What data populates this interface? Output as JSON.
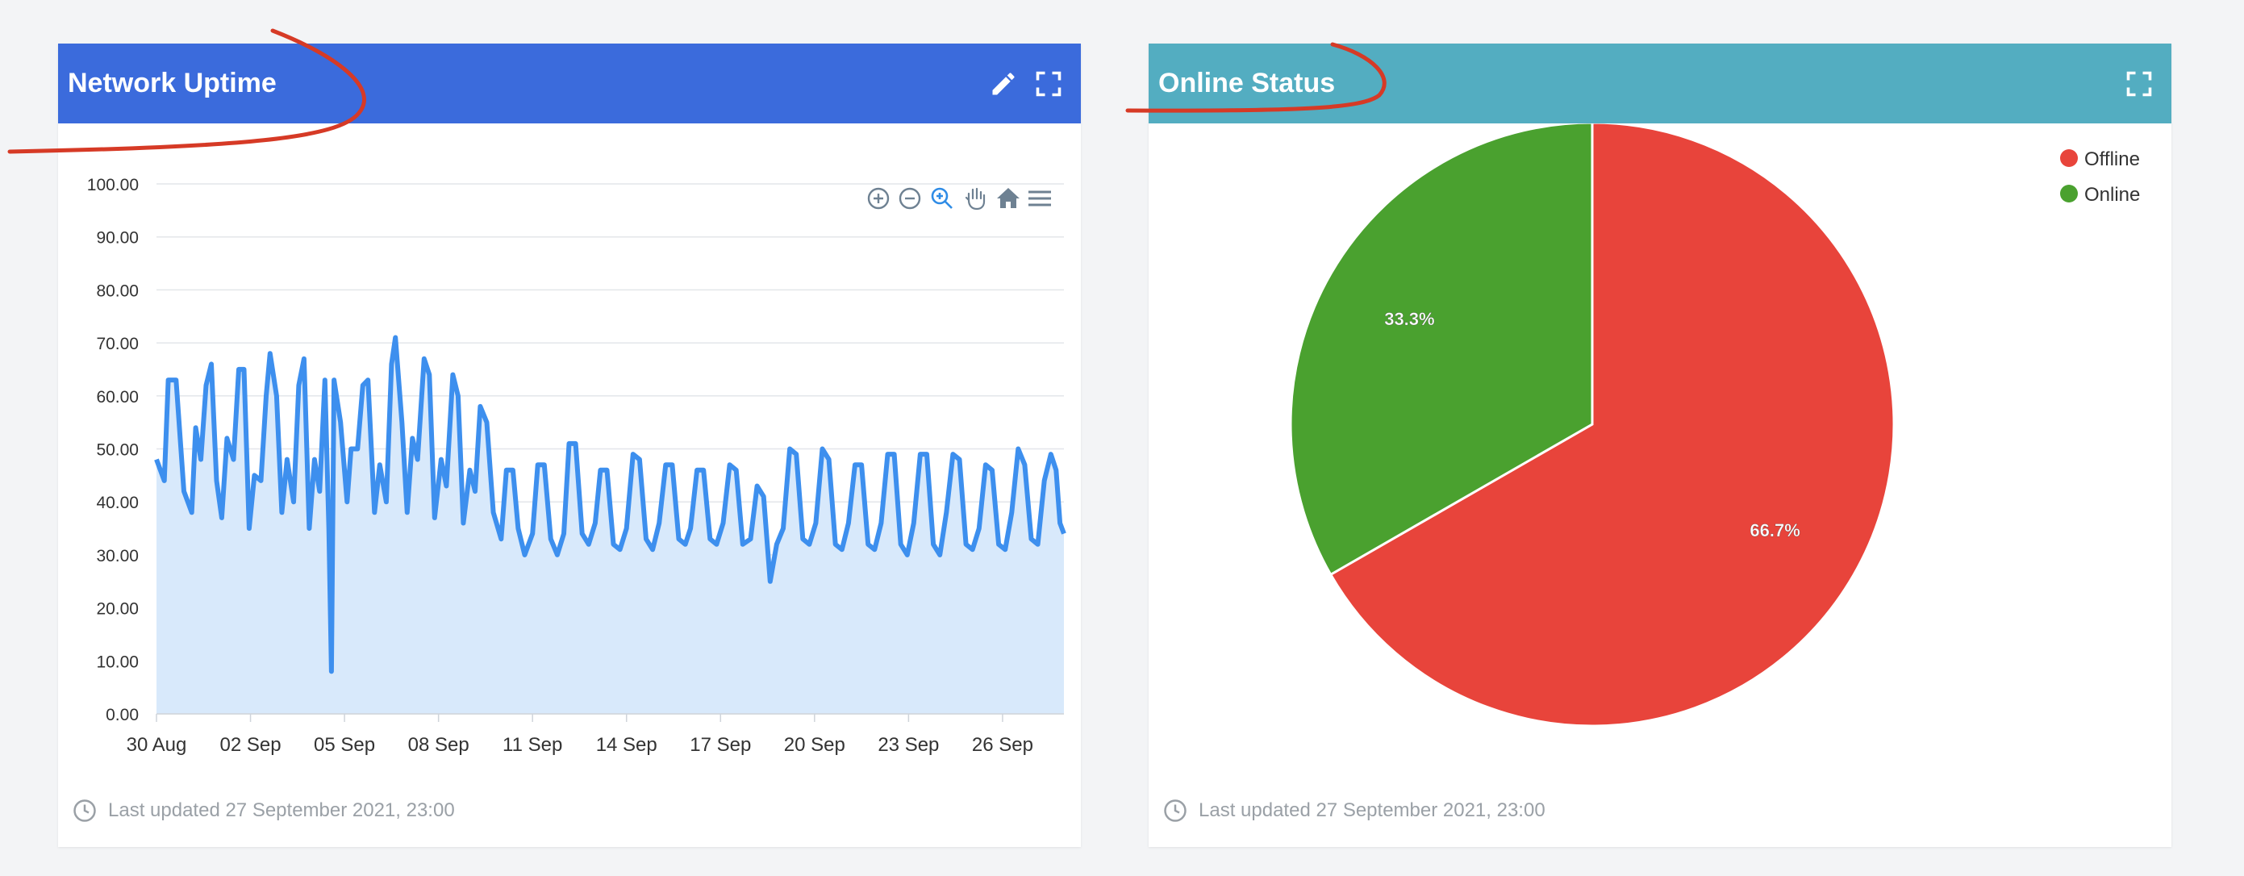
{
  "panels": {
    "uptime": {
      "title": "Network Uptime",
      "last_updated": "Last updated 27 September 2021, 23:00",
      "header_icons": [
        "pencil-icon",
        "fullscreen-icon"
      ],
      "toolbar_icons": [
        "zoom-in-icon",
        "zoom-out-icon",
        "selection-zoom-icon",
        "pan-hand-icon",
        "reset-home-icon",
        "menu-icon"
      ]
    },
    "status": {
      "title": "Online Status",
      "last_updated": "Last updated 27 September 2021, 23:00",
      "header_icons": [
        "fullscreen-icon"
      ]
    }
  },
  "colors": {
    "uptime_header": "#3b6bdc",
    "status_header": "#53adc1",
    "line": "#3d8fee",
    "area": "#d8e9fb",
    "offline": "#e8443b",
    "online": "#4aa12f",
    "annotation": "#d63a26"
  },
  "chart_data": [
    {
      "type": "area",
      "xlabel": "",
      "ylabel": "",
      "ylim": [
        0,
        100
      ],
      "yticks": [
        "0.00",
        "10.00",
        "20.00",
        "30.00",
        "40.00",
        "50.00",
        "60.00",
        "70.00",
        "80.00",
        "90.00",
        "100.00"
      ],
      "xlim": [
        "2021-08-30",
        "2021-09-27T23:00"
      ],
      "xticks": [
        {
          "date": "2021-08-30",
          "label": "30 Aug"
        },
        {
          "date": "2021-09-02",
          "label": "02 Sep"
        },
        {
          "date": "2021-09-05",
          "label": "05 Sep"
        },
        {
          "date": "2021-09-08",
          "label": "08 Sep"
        },
        {
          "date": "2021-09-11",
          "label": "11 Sep"
        },
        {
          "date": "2021-09-14",
          "label": "14 Sep"
        },
        {
          "date": "2021-09-17",
          "label": "17 Sep"
        },
        {
          "date": "2021-09-20",
          "label": "20 Sep"
        },
        {
          "date": "2021-09-23",
          "label": "23 Sep"
        },
        {
          "date": "2021-09-26",
          "label": "26 Sep"
        }
      ],
      "grid": true,
      "series": [
        {
          "points": [
            [
              "2021-08-30T00:00",
              48
            ],
            [
              "2021-08-30T06:00",
              44
            ],
            [
              "2021-08-30T09:00",
              63
            ],
            [
              "2021-08-30T15:00",
              63
            ],
            [
              "2021-08-30T21:00",
              42
            ],
            [
              "2021-08-31T03:00",
              38
            ],
            [
              "2021-08-31T06:00",
              54
            ],
            [
              "2021-08-31T10:00",
              48
            ],
            [
              "2021-08-31T14:00",
              62
            ],
            [
              "2021-08-31T18:00",
              66
            ],
            [
              "2021-08-31T22:00",
              44
            ],
            [
              "2021-09-01T02:00",
              37
            ],
            [
              "2021-09-01T06:00",
              52
            ],
            [
              "2021-09-01T11:00",
              48
            ],
            [
              "2021-09-01T15:00",
              65
            ],
            [
              "2021-09-01T19:00",
              65
            ],
            [
              "2021-09-01T23:00",
              35
            ],
            [
              "2021-09-02T03:00",
              45
            ],
            [
              "2021-09-02T08:00",
              44
            ],
            [
              "2021-09-02T12:00",
              60
            ],
            [
              "2021-09-02T15:00",
              68
            ],
            [
              "2021-09-02T20:00",
              60
            ],
            [
              "2021-09-03T00:00",
              38
            ],
            [
              "2021-09-03T04:00",
              48
            ],
            [
              "2021-09-03T09:00",
              40
            ],
            [
              "2021-09-03T13:00",
              62
            ],
            [
              "2021-09-03T17:00",
              67
            ],
            [
              "2021-09-03T21:00",
              35
            ],
            [
              "2021-09-04T01:00",
              48
            ],
            [
              "2021-09-04T05:00",
              42
            ],
            [
              "2021-09-04T09:00",
              63
            ],
            [
              "2021-09-04T12:00",
              35
            ],
            [
              "2021-09-04T14:00",
              8
            ],
            [
              "2021-09-04T16:00",
              63
            ],
            [
              "2021-09-04T21:00",
              55
            ],
            [
              "2021-09-05T02:00",
              40
            ],
            [
              "2021-09-05T05:00",
              50
            ],
            [
              "2021-09-05T10:00",
              50
            ],
            [
              "2021-09-05T14:00",
              62
            ],
            [
              "2021-09-05T18:00",
              63
            ],
            [
              "2021-09-05T23:00",
              38
            ],
            [
              "2021-09-06T03:00",
              47
            ],
            [
              "2021-09-06T08:00",
              40
            ],
            [
              "2021-09-06T12:00",
              66
            ],
            [
              "2021-09-06T15:00",
              71
            ],
            [
              "2021-09-06T20:00",
              55
            ],
            [
              "2021-09-07T00:00",
              38
            ],
            [
              "2021-09-07T04:00",
              52
            ],
            [
              "2021-09-07T08:00",
              48
            ],
            [
              "2021-09-07T13:00",
              67
            ],
            [
              "2021-09-07T17:00",
              64
            ],
            [
              "2021-09-07T21:00",
              37
            ],
            [
              "2021-09-08T02:00",
              48
            ],
            [
              "2021-09-08T06:00",
              43
            ],
            [
              "2021-09-08T11:00",
              64
            ],
            [
              "2021-09-08T15:00",
              60
            ],
            [
              "2021-09-08T19:00",
              36
            ],
            [
              "2021-09-09T00:00",
              46
            ],
            [
              "2021-09-09T04:00",
              42
            ],
            [
              "2021-09-09T08:00",
              58
            ],
            [
              "2021-09-09T13:00",
              55
            ],
            [
              "2021-09-09T18:00",
              38
            ],
            [
              "2021-09-10T00:00",
              33
            ],
            [
              "2021-09-10T04:00",
              46
            ],
            [
              "2021-09-10T09:00",
              46
            ],
            [
              "2021-09-10T13:00",
              35
            ],
            [
              "2021-09-10T18:00",
              30
            ],
            [
              "2021-09-11T00:00",
              34
            ],
            [
              "2021-09-11T04:00",
              47
            ],
            [
              "2021-09-11T09:00",
              47
            ],
            [
              "2021-09-11T14:00",
              33
            ],
            [
              "2021-09-11T19:00",
              30
            ],
            [
              "2021-09-12T00:00",
              34
            ],
            [
              "2021-09-12T04:00",
              51
            ],
            [
              "2021-09-12T09:00",
              51
            ],
            [
              "2021-09-12T14:00",
              34
            ],
            [
              "2021-09-12T19:00",
              32
            ],
            [
              "2021-09-13T00:00",
              36
            ],
            [
              "2021-09-13T04:00",
              46
            ],
            [
              "2021-09-13T09:00",
              46
            ],
            [
              "2021-09-13T14:00",
              32
            ],
            [
              "2021-09-13T19:00",
              31
            ],
            [
              "2021-09-14T00:00",
              35
            ],
            [
              "2021-09-14T05:00",
              49
            ],
            [
              "2021-09-14T10:00",
              48
            ],
            [
              "2021-09-14T15:00",
              33
            ],
            [
              "2021-09-14T20:00",
              31
            ],
            [
              "2021-09-15T01:00",
              36
            ],
            [
              "2021-09-15T06:00",
              47
            ],
            [
              "2021-09-15T11:00",
              47
            ],
            [
              "2021-09-15T16:00",
              33
            ],
            [
              "2021-09-15T21:00",
              32
            ],
            [
              "2021-09-16T01:00",
              35
            ],
            [
              "2021-09-16T06:00",
              46
            ],
            [
              "2021-09-16T11:00",
              46
            ],
            [
              "2021-09-16T16:00",
              33
            ],
            [
              "2021-09-16T21:00",
              32
            ],
            [
              "2021-09-17T02:00",
              36
            ],
            [
              "2021-09-17T07:00",
              47
            ],
            [
              "2021-09-17T12:00",
              46
            ],
            [
              "2021-09-17T17:00",
              32
            ],
            [
              "2021-09-17T23:00",
              33
            ],
            [
              "2021-09-18T04:00",
              43
            ],
            [
              "2021-09-18T09:00",
              41
            ],
            [
              "2021-09-18T14:00",
              25
            ],
            [
              "2021-09-18T19:00",
              32
            ],
            [
              "2021-09-19T00:00",
              35
            ],
            [
              "2021-09-19T05:00",
              50
            ],
            [
              "2021-09-19T10:00",
              49
            ],
            [
              "2021-09-19T15:00",
              33
            ],
            [
              "2021-09-19T20:00",
              32
            ],
            [
              "2021-09-20T01:00",
              36
            ],
            [
              "2021-09-20T06:00",
              50
            ],
            [
              "2021-09-20T11:00",
              48
            ],
            [
              "2021-09-20T16:00",
              32
            ],
            [
              "2021-09-20T21:00",
              31
            ],
            [
              "2021-09-21T02:00",
              36
            ],
            [
              "2021-09-21T07:00",
              47
            ],
            [
              "2021-09-21T12:00",
              47
            ],
            [
              "2021-09-21T17:00",
              32
            ],
            [
              "2021-09-21T22:00",
              31
            ],
            [
              "2021-09-22T03:00",
              36
            ],
            [
              "2021-09-22T08:00",
              49
            ],
            [
              "2021-09-22T13:00",
              49
            ],
            [
              "2021-09-22T18:00",
              32
            ],
            [
              "2021-09-22T23:00",
              30
            ],
            [
              "2021-09-23T04:00",
              36
            ],
            [
              "2021-09-23T09:00",
              49
            ],
            [
              "2021-09-23T14:00",
              49
            ],
            [
              "2021-09-23T19:00",
              32
            ],
            [
              "2021-09-24T00:00",
              30
            ],
            [
              "2021-09-24T05:00",
              38
            ],
            [
              "2021-09-24T10:00",
              49
            ],
            [
              "2021-09-24T15:00",
              48
            ],
            [
              "2021-09-24T20:00",
              32
            ],
            [
              "2021-09-25T01:00",
              31
            ],
            [
              "2021-09-25T06:00",
              35
            ],
            [
              "2021-09-25T11:00",
              47
            ],
            [
              "2021-09-25T16:00",
              46
            ],
            [
              "2021-09-25T21:00",
              32
            ],
            [
              "2021-09-26T02:00",
              31
            ],
            [
              "2021-09-26T07:00",
              38
            ],
            [
              "2021-09-26T12:00",
              50
            ],
            [
              "2021-09-26T17:00",
              47
            ],
            [
              "2021-09-26T22:00",
              33
            ],
            [
              "2021-09-27T03:00",
              32
            ],
            [
              "2021-09-27T08:00",
              44
            ],
            [
              "2021-09-27T13:00",
              49
            ],
            [
              "2021-09-27T17:00",
              46
            ],
            [
              "2021-09-27T20:00",
              36
            ],
            [
              "2021-09-27T23:00",
              34
            ]
          ]
        }
      ]
    },
    {
      "type": "pie",
      "legend_position": "top-right",
      "legend": [
        "Offline",
        "Online"
      ],
      "slices": [
        {
          "name": "Offline",
          "value": 66.7,
          "label": "66.7%",
          "color": "#e8443b"
        },
        {
          "name": "Online",
          "value": 33.3,
          "label": "33.3%",
          "color": "#4aa12f"
        }
      ]
    }
  ]
}
